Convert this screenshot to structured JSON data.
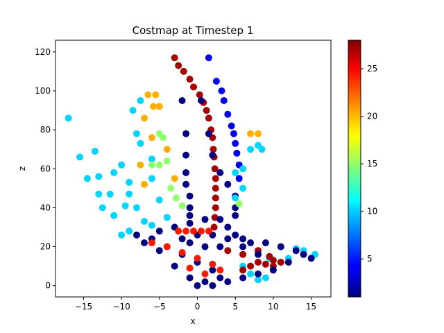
{
  "chart_data": {
    "type": "scatter",
    "title": "Costmap at Timestep 1",
    "xlabel": "x",
    "ylabel": "z",
    "xlim": [
      -18.7,
      17.6
    ],
    "ylim": [
      -5.8,
      126.0
    ],
    "xticks": [
      -15,
      -10,
      -5,
      0,
      5,
      10,
      15
    ],
    "yticks": [
      0,
      20,
      40,
      60,
      80,
      100,
      120
    ],
    "grid": false,
    "legend": "none",
    "colormap": "jet",
    "colorbar": {
      "vmin": 1,
      "vmax": 28,
      "ticks": [
        5,
        10,
        15,
        20,
        25
      ]
    },
    "series": [
      {
        "description": "red curved band",
        "points": [
          [
            -3,
            117
          ],
          [
            -2.5,
            113
          ],
          [
            -1.8,
            110
          ],
          [
            -1,
            106
          ],
          [
            -0.5,
            102
          ],
          [
            0.3,
            98
          ],
          [
            0.8,
            94
          ],
          [
            1.2,
            90
          ],
          [
            1.5,
            86
          ],
          [
            1.8,
            80
          ],
          [
            2,
            76
          ],
          [
            2.1,
            70
          ],
          [
            2.2,
            66
          ],
          [
            2.3,
            60
          ],
          [
            2.4,
            55
          ],
          [
            2.4,
            50
          ],
          [
            2.4,
            45
          ],
          [
            2.4,
            40
          ],
          [
            2.3,
            35
          ],
          [
            2.2,
            30
          ]
        ],
        "value": 27
      },
      {
        "description": "dark-blue horizontal rows",
        "points": [
          [
            -2,
            95
          ],
          [
            0.5,
            95
          ],
          [
            -1.5,
            78
          ],
          [
            1.5,
            78
          ],
          [
            -1.5,
            67
          ],
          [
            2,
            67
          ],
          [
            -1.5,
            58
          ],
          [
            3,
            58
          ],
          [
            -1.5,
            52
          ],
          [
            4,
            52
          ],
          [
            -1,
            46
          ],
          [
            5,
            46
          ],
          [
            -1,
            40
          ],
          [
            5,
            40
          ],
          [
            -1,
            36
          ],
          [
            5,
            36
          ]
        ],
        "value": 1
      },
      {
        "description": "blue arc on right",
        "points": [
          [
            1.5,
            117
          ],
          [
            2.5,
            105
          ],
          [
            3.2,
            100
          ],
          [
            3.5,
            95
          ],
          [
            4,
            88
          ],
          [
            4.5,
            82
          ],
          [
            4.8,
            78
          ],
          [
            5,
            73
          ],
          [
            5.2,
            68
          ],
          [
            5.5,
            62
          ],
          [
            5.5,
            55
          ]
        ],
        "value": 4
      },
      {
        "description": "light-blue scattered points on left",
        "points": [
          [
            -17,
            86
          ],
          [
            -15.5,
            66
          ],
          [
            -13.5,
            69
          ],
          [
            -14.5,
            55
          ],
          [
            -13,
            56
          ],
          [
            -11,
            58
          ],
          [
            -13,
            47
          ],
          [
            -11.5,
            47
          ],
          [
            -12.5,
            40
          ],
          [
            -11,
            36
          ],
          [
            -10,
            62
          ],
          [
            -9,
            53
          ],
          [
            -9.5,
            41
          ],
          [
            -9,
            28
          ],
          [
            -8.5,
            90
          ],
          [
            -7.5,
            95
          ],
          [
            -8,
            78
          ],
          [
            -7.5,
            73
          ],
          [
            -6,
            65
          ],
          [
            -6,
            55
          ],
          [
            -5,
            44
          ],
          [
            -4,
            35
          ],
          [
            -7,
            33
          ],
          [
            -9,
            47
          ],
          [
            -8,
            40
          ],
          [
            -6,
            31
          ],
          [
            -3,
            30
          ],
          [
            -10,
            26
          ]
        ],
        "value": 10
      },
      {
        "description": "yellow-orange points upper left",
        "points": [
          [
            -6.5,
            98
          ],
          [
            -5.5,
            98
          ],
          [
            -5.8,
            92
          ],
          [
            -5,
            92
          ],
          [
            -7,
            86
          ],
          [
            -6,
            76
          ],
          [
            -4,
            70
          ],
          [
            -7.5,
            62
          ],
          [
            -3,
            55
          ],
          [
            -7,
            52
          ],
          [
            7,
            78
          ],
          [
            8,
            78
          ]
        ],
        "value": 20
      },
      {
        "description": "green points",
        "points": [
          [
            -5,
            78
          ],
          [
            -4.5,
            76
          ],
          [
            -6,
            62
          ],
          [
            -4,
            64
          ],
          [
            -3.5,
            50
          ],
          [
            -2.8,
            45
          ],
          [
            -2,
            41
          ],
          [
            -5,
            62
          ],
          [
            5.5,
            42
          ]
        ],
        "value": 15
      },
      {
        "description": "light-blue right side streaks",
        "points": [
          [
            5,
            58
          ],
          [
            6,
            60
          ],
          [
            6,
            50
          ],
          [
            5,
            45
          ],
          [
            7,
            70
          ],
          [
            8,
            72
          ],
          [
            8.5,
            70
          ],
          [
            9.5,
            14
          ],
          [
            11,
            12
          ],
          [
            12,
            14
          ],
          [
            14,
            18
          ],
          [
            15.5,
            16
          ],
          [
            11,
            20
          ],
          [
            13,
            19
          ],
          [
            6,
            10
          ],
          [
            7,
            6
          ],
          [
            8,
            3
          ],
          [
            9,
            4
          ]
        ],
        "value": 10
      },
      {
        "description": "dark-red band lower right",
        "points": [
          [
            4,
            18
          ],
          [
            6,
            16
          ],
          [
            8,
            18
          ],
          [
            9.5,
            15
          ],
          [
            10,
            13
          ],
          [
            11,
            12
          ],
          [
            6,
            8
          ],
          [
            7,
            10
          ],
          [
            8,
            12
          ],
          [
            9,
            11
          ],
          [
            10,
            10
          ]
        ],
        "value": 27
      },
      {
        "description": "dark-blue dense ground region",
        "points": [
          [
            -8,
            26
          ],
          [
            -6,
            24
          ],
          [
            -4,
            20
          ],
          [
            -2,
            16
          ],
          [
            0,
            12
          ],
          [
            2,
            8
          ],
          [
            3,
            4
          ],
          [
            1,
            2
          ],
          [
            0,
            0
          ],
          [
            -1,
            4
          ],
          [
            -3,
            10
          ],
          [
            -5,
            18
          ],
          [
            -7,
            22
          ],
          [
            -5,
            28
          ],
          [
            -3,
            30
          ],
          [
            -1,
            32
          ],
          [
            1,
            34
          ],
          [
            3,
            34
          ],
          [
            4,
            30
          ],
          [
            5,
            26
          ],
          [
            6,
            24
          ],
          [
            7,
            22
          ],
          [
            9,
            22
          ],
          [
            11,
            20
          ],
          [
            13,
            18
          ],
          [
            14,
            16
          ],
          [
            15,
            14
          ],
          [
            12,
            12
          ],
          [
            10,
            8
          ],
          [
            8,
            6
          ],
          [
            6,
            4
          ],
          [
            4,
            2
          ],
          [
            2,
            0
          ],
          [
            3,
            20
          ],
          [
            1,
            20
          ],
          [
            -1,
            22
          ],
          [
            -2,
            24
          ],
          [
            0,
            26
          ],
          [
            2,
            26
          ],
          [
            4,
            24
          ],
          [
            6,
            20
          ],
          [
            8,
            16
          ]
        ],
        "value": 1
      },
      {
        "description": "red streaks within ground",
        "points": [
          [
            -2.5,
            28
          ],
          [
            -1.5,
            28
          ],
          [
            -0.5,
            28
          ],
          [
            0.5,
            28
          ],
          [
            1.5,
            28
          ],
          [
            -6,
            22
          ],
          [
            -4,
            20
          ],
          [
            -2,
            17
          ],
          [
            0,
            14
          ],
          [
            2,
            11
          ],
          [
            3,
            8
          ],
          [
            1,
            6
          ],
          [
            -1,
            9
          ]
        ],
        "value": 24
      }
    ]
  }
}
